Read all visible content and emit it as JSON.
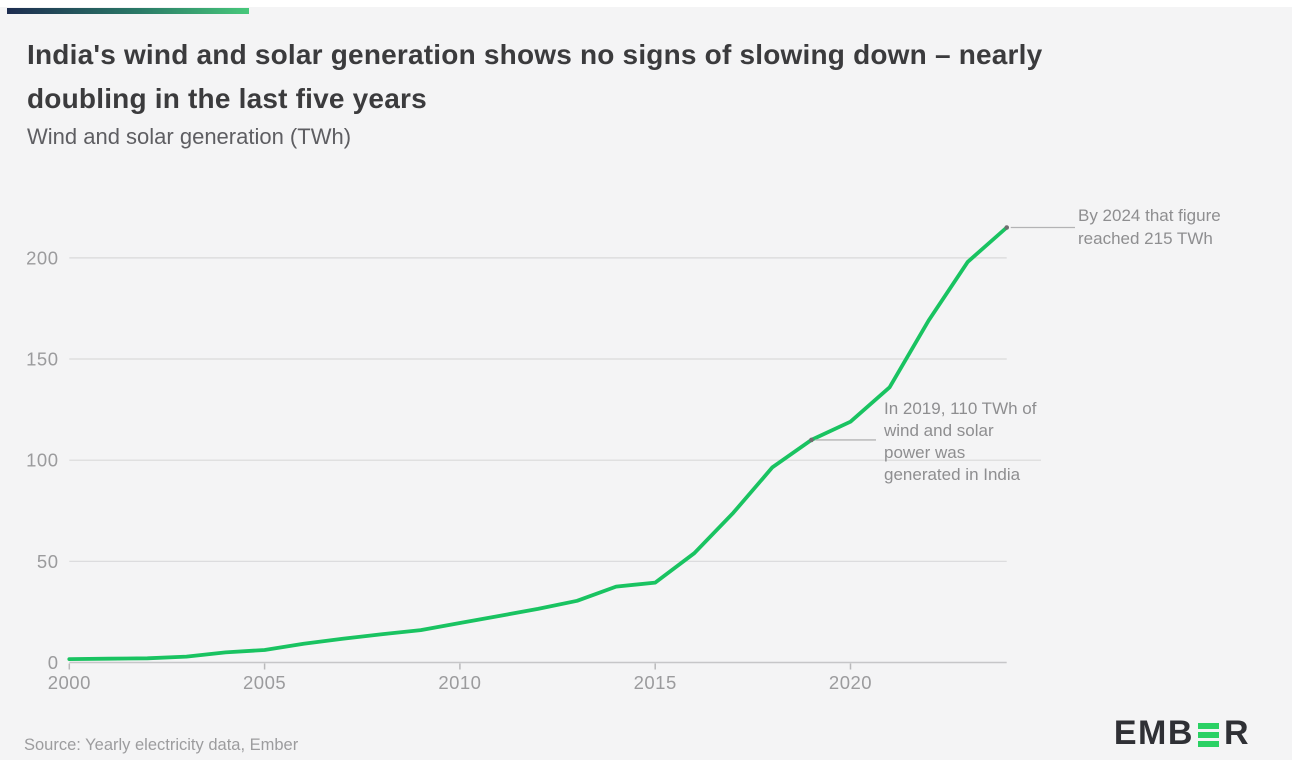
{
  "page": {
    "background_color": "#f4f4f5",
    "accent_bar_gradient": [
      "#1d2c50",
      "#2a7a67",
      "#47c87b"
    ]
  },
  "header": {
    "title": "India's wind and solar generation shows no signs of slowing down – nearly\ndoubling in the last five years",
    "subtitle": "Wind and solar generation (TWh)"
  },
  "chart_data": {
    "type": "line",
    "title": "Wind and solar generation (TWh)",
    "unit": "TWh",
    "series_name": "India wind and solar generation",
    "x": [
      2000,
      2001,
      2002,
      2003,
      2004,
      2005,
      2006,
      2007,
      2008,
      2009,
      2010,
      2011,
      2012,
      2013,
      2014,
      2015,
      2016,
      2017,
      2018,
      2019,
      2020,
      2021,
      2022,
      2023,
      2024
    ],
    "values": [
      1.7,
      1.9,
      2.1,
      2.9,
      5.0,
      6.2,
      9.3,
      11.7,
      14.0,
      16.0,
      19.5,
      23.0,
      26.5,
      30.5,
      37.5,
      39.5,
      54,
      74,
      96.5,
      110,
      119,
      136,
      169,
      198,
      215
    ],
    "xlabel": "",
    "ylabel": "",
    "ylim": [
      0,
      220
    ],
    "yticks": [
      0,
      50,
      100,
      150,
      200
    ],
    "xticks": [
      2000,
      2005,
      2010,
      2015,
      2020
    ],
    "grid": "horizontal",
    "legend_position": "none",
    "line_color": "#19c361",
    "gridline_color": "#d9d9da",
    "axis_color": "#c6c6c8",
    "tick_label_color": "#9b9b9d",
    "annotations": [
      {
        "text": "In 2019, 110 TWh of\nwind and solar\npower was\ngenerated in India",
        "year": 2019,
        "value": 110
      },
      {
        "text": "By 2024 that figure\nreached 215 TWh",
        "year": 2024,
        "value": 215
      }
    ]
  },
  "footer": {
    "source": "Source: Yearly electricity data, Ember",
    "logo": {
      "name": "EMBER",
      "prefix": "EMB",
      "suffix": "R",
      "green": "#2bd164"
    }
  }
}
